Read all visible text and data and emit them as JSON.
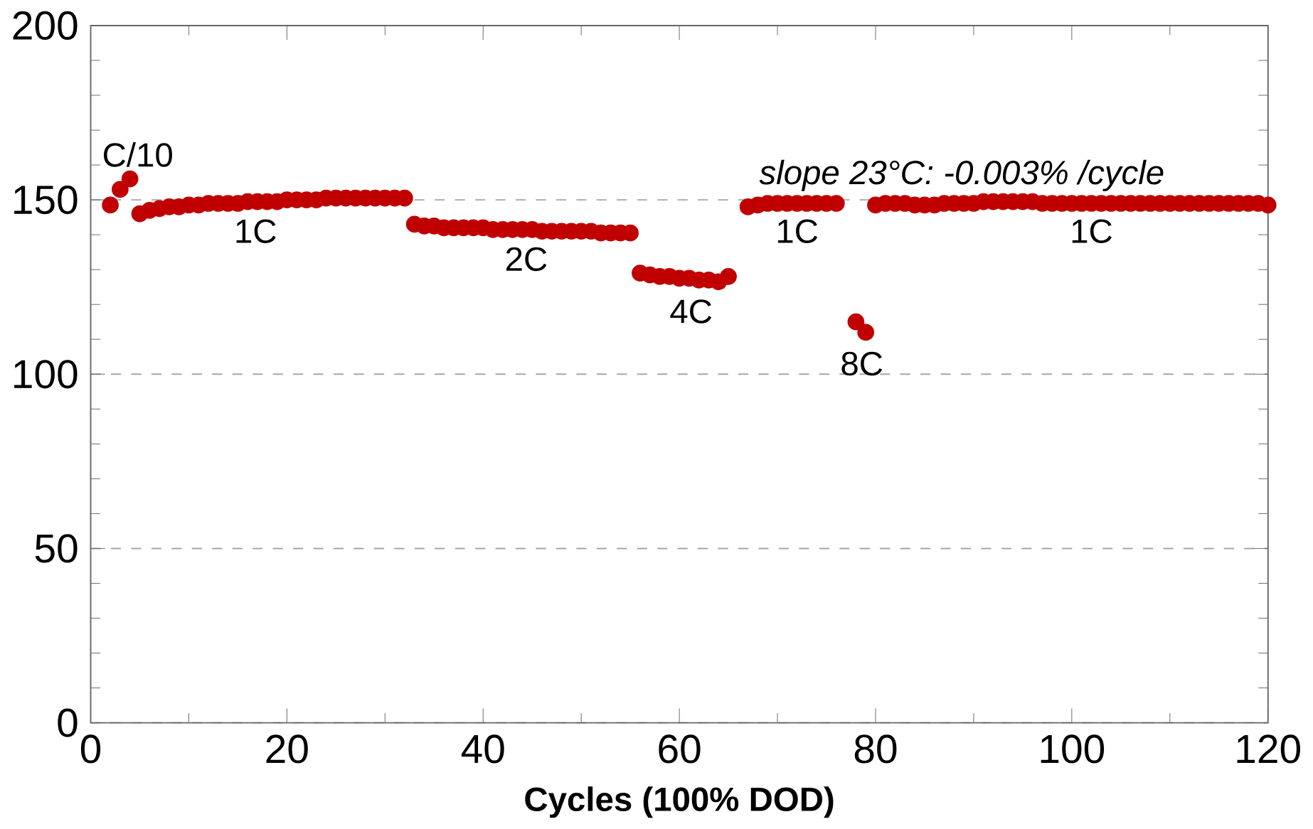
{
  "chart_data": {
    "type": "scatter",
    "xlabel": "Cycles (100% DOD)",
    "x": [
      2,
      3,
      4,
      5,
      6,
      7,
      8,
      9,
      10,
      11,
      12,
      13,
      14,
      15,
      16,
      17,
      18,
      19,
      20,
      21,
      22,
      23,
      24,
      25,
      26,
      27,
      28,
      29,
      30,
      31,
      32,
      33,
      34,
      35,
      36,
      37,
      38,
      39,
      40,
      41,
      42,
      43,
      44,
      45,
      46,
      47,
      48,
      49,
      50,
      51,
      52,
      53,
      54,
      55,
      56,
      57,
      58,
      59,
      60,
      61,
      62,
      63,
      64,
      65,
      67,
      68,
      69,
      70,
      71,
      72,
      73,
      74,
      75,
      76,
      78,
      79,
      80,
      81,
      82,
      83,
      84,
      85,
      86,
      87,
      88,
      89,
      90,
      91,
      92,
      93,
      94,
      95,
      96,
      97,
      98,
      99,
      100,
      101,
      102,
      103,
      104,
      105,
      106,
      107,
      108,
      109,
      110,
      111,
      112,
      113,
      114,
      115,
      116,
      117,
      118,
      119,
      120
    ],
    "values": [
      148.5,
      153,
      156,
      146,
      147,
      147.5,
      148,
      148,
      148.5,
      148.5,
      149,
      149,
      149,
      149,
      149.5,
      149.5,
      149.5,
      149.5,
      150,
      150,
      150,
      150,
      150.5,
      150.5,
      150.5,
      150.5,
      150.5,
      150.5,
      150.5,
      150.5,
      150.5,
      143,
      142.5,
      142.5,
      142,
      142,
      142,
      142,
      142,
      141.5,
      141.5,
      141.5,
      141.5,
      141.5,
      141,
      141,
      141,
      141,
      141,
      141,
      140.5,
      140.5,
      140.5,
      140.5,
      129,
      128.5,
      128,
      128,
      127.5,
      127.5,
      127,
      127,
      126.5,
      128,
      148,
      148.5,
      149,
      149,
      149,
      149,
      149,
      149,
      149,
      149,
      115,
      112,
      148.5,
      149,
      149,
      149,
      148.5,
      148.5,
      148.5,
      149,
      149,
      149,
      149,
      149.5,
      149.5,
      149.5,
      149.5,
      149.5,
      149.5,
      149,
      149,
      149,
      149,
      149,
      149,
      149,
      149,
      149,
      149,
      149,
      149,
      149,
      149,
      149,
      149,
      149,
      149,
      149,
      149,
      149,
      149,
      149,
      148.5
    ],
    "color": "#c00000",
    "marker": "circle",
    "xlim": [
      0,
      120
    ],
    "ylim": [
      0,
      200
    ],
    "xticks": [
      0,
      20,
      40,
      60,
      80,
      100,
      120
    ],
    "yticks": [
      0,
      50,
      100,
      150,
      200
    ],
    "grid": "y",
    "annotations": [
      "C/10",
      "1C",
      "2C",
      "4C",
      "1C",
      "8C",
      "1C",
      "*slope 23°C: -0.003% /cycle*"
    ]
  }
}
